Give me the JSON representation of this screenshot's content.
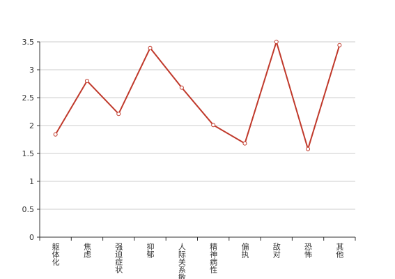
{
  "chart_data": {
    "type": "line",
    "categories": [
      "躯体化",
      "焦虑",
      "强迫症状",
      "抑郁",
      "人际关系敏感",
      "精神病性",
      "偏执",
      "敌对",
      "恐怖",
      "其他"
    ],
    "series": [
      {
        "color": "#c0392b",
        "values": [
          1.84,
          2.8,
          2.21,
          3.39,
          2.68,
          2.01,
          1.68,
          3.5,
          1.58,
          3.44
        ]
      }
    ],
    "ylim": [
      0,
      3.5
    ],
    "yticks": [
      0,
      0.5,
      1,
      1.5,
      2,
      2.5,
      3,
      3.5
    ],
    "grid": true
  }
}
